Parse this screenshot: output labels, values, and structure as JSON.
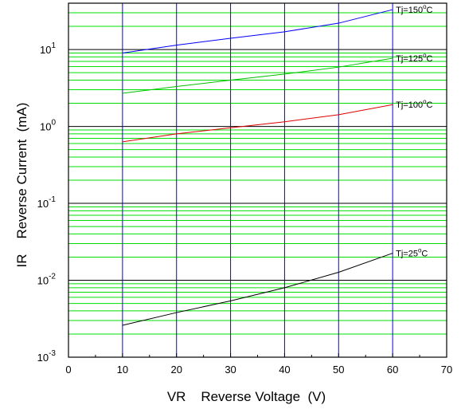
{
  "chart_data": {
    "type": "line",
    "title": "",
    "xlabel": "VR    Reverse Voltage  (V)",
    "ylabel": "IR    Reverse Current  (mA)",
    "xlim": [
      0,
      70
    ],
    "ylim": [
      0.001,
      40
    ],
    "yscale": "log",
    "grid": true,
    "x_ticks": [
      0,
      10,
      20,
      30,
      40,
      50,
      60,
      70
    ],
    "x_tick_labels": [
      "0",
      "10",
      "20",
      "30",
      "40",
      "50",
      "60",
      "70"
    ],
    "y_ticks": [
      0.001,
      0.01,
      0.1,
      1,
      10
    ],
    "y_tick_labels": [
      {
        "base": "10",
        "exp": "-3"
      },
      {
        "base": "10",
        "exp": "-2"
      },
      {
        "base": "10",
        "exp": "-1"
      },
      {
        "base": "10",
        "exp": "0"
      },
      {
        "base": "10",
        "exp": "1"
      }
    ],
    "colors": {
      "grid_horizontal": "#00e000",
      "grid_vertical": "#0000ff",
      "decade_lines": "#000000",
      "background": "#ffffff"
    },
    "series": [
      {
        "name": "Tj=150°C",
        "label_parts": [
          "Tj=150",
          "o",
          "C"
        ],
        "color": "#0000ff",
        "x": [
          10,
          20,
          30,
          40,
          50,
          60
        ],
        "values": [
          9.0,
          11.4,
          14.0,
          17.0,
          22.0,
          33.0
        ]
      },
      {
        "name": "Tj=125°C",
        "label_parts": [
          "Tj=125",
          "o",
          "C"
        ],
        "color": "#00c000",
        "x": [
          10,
          20,
          30,
          40,
          50,
          60
        ],
        "values": [
          2.7,
          3.3,
          4.0,
          4.8,
          5.9,
          7.7
        ]
      },
      {
        "name": "Tj=100°C",
        "label_parts": [
          "Tj=100",
          "o",
          "C"
        ],
        "color": "#e00000",
        "x": [
          10,
          20,
          30,
          40,
          50,
          60
        ],
        "values": [
          0.63,
          0.8,
          0.96,
          1.15,
          1.42,
          1.92
        ]
      },
      {
        "name": "Tj=25°C",
        "label_parts": [
          "Tj=25",
          "o",
          "C"
        ],
        "color": "#000000",
        "x": [
          10,
          20,
          30,
          40,
          50,
          60
        ],
        "values": [
          0.0026,
          0.0038,
          0.0054,
          0.008,
          0.0127,
          0.0225
        ]
      }
    ]
  }
}
